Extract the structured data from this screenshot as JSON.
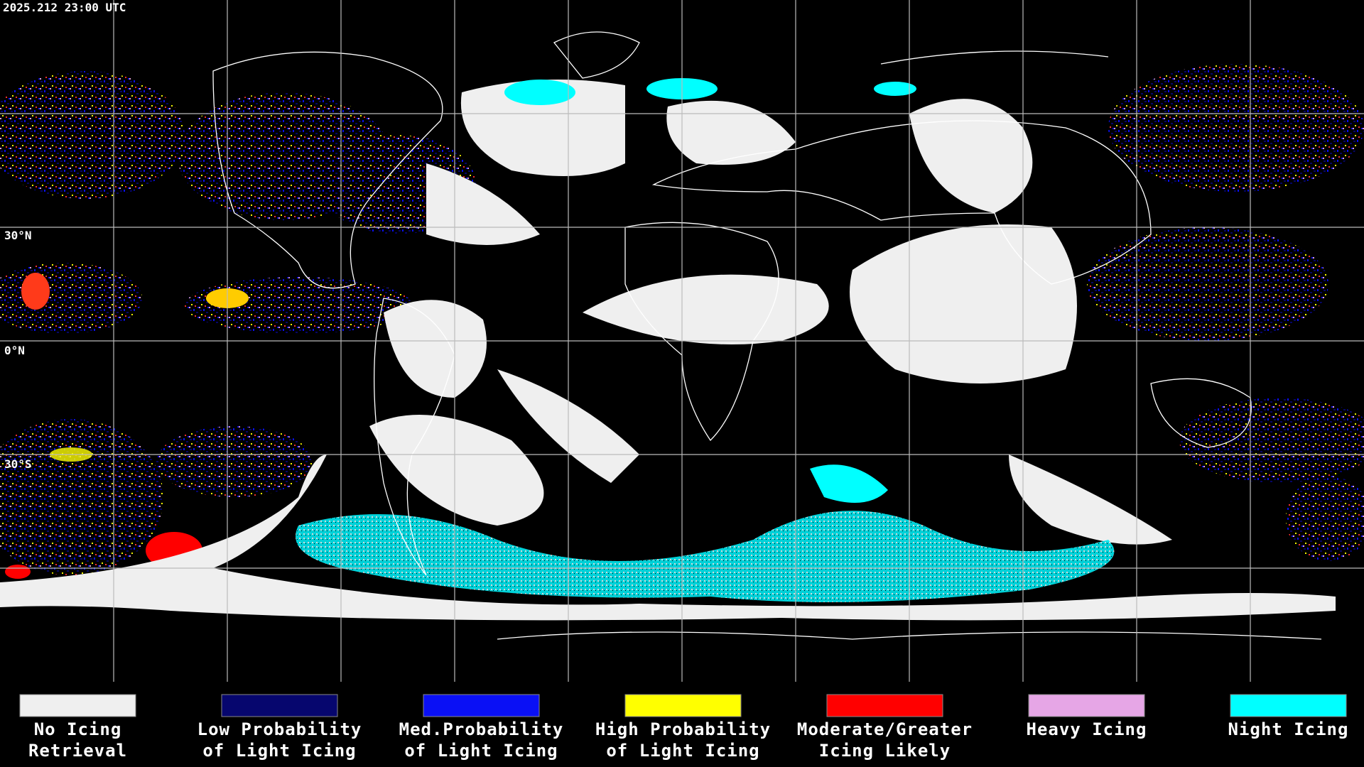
{
  "timestamp": "2025.212 23:00 UTC",
  "latitude_labels": [
    "30°N",
    "0°N",
    "30°S"
  ],
  "legend": [
    {
      "label_lines": [
        "No Icing",
        "Retrieval"
      ],
      "color": "#efefef"
    },
    {
      "label_lines": [
        "Low Probability",
        "of Light Icing"
      ],
      "color": "#06066e"
    },
    {
      "label_lines": [
        "Med.Probability",
        "of Light Icing"
      ],
      "color": "#0a10f5"
    },
    {
      "label_lines": [
        "High Probability",
        "of Light Icing"
      ],
      "color": "#ffff00"
    },
    {
      "label_lines": [
        "Moderate/Greater",
        "Icing Likely"
      ],
      "color": "#ff0000"
    },
    {
      "label_lines": [
        "Heavy Icing"
      ],
      "color": "#e6a6e6"
    },
    {
      "label_lines": [
        "Night Icing"
      ],
      "color": "#00ffff"
    }
  ]
}
